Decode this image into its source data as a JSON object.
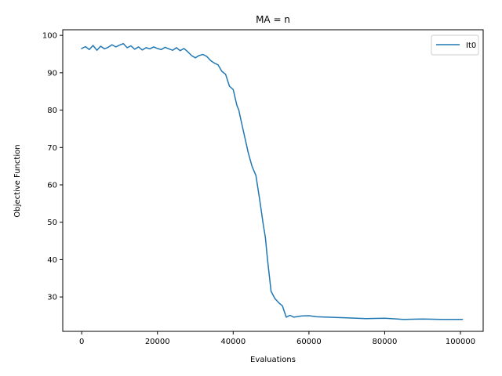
{
  "chart_data": {
    "type": "line",
    "title": "MA = n",
    "xlabel": "Evaluations",
    "ylabel": "Objective Function",
    "xlim": [
      -5000,
      106000
    ],
    "ylim": [
      20.8,
      101.5
    ],
    "xticks": [
      0,
      20000,
      40000,
      60000,
      80000,
      100000
    ],
    "yticks": [
      30,
      40,
      50,
      60,
      70,
      80,
      90,
      100
    ],
    "grid": false,
    "legend_position": "upper right",
    "series": [
      {
        "name": "It0",
        "color": "#1f77b4",
        "x": [
          0,
          1000,
          2000,
          3000,
          4000,
          5000,
          6000,
          7000,
          8000,
          9000,
          10000,
          11000,
          12000,
          13000,
          14000,
          15000,
          16000,
          17000,
          18000,
          19000,
          20000,
          21000,
          22000,
          23000,
          24000,
          25000,
          26000,
          27000,
          28000,
          29000,
          30000,
          31000,
          32000,
          33000,
          34000,
          35000,
          36000,
          37000,
          38000,
          39000,
          40000,
          41000,
          41500,
          42000,
          43000,
          44000,
          45000,
          46000,
          47000,
          47500,
          48000,
          48500,
          49000,
          49500,
          50000,
          51000,
          52000,
          53000,
          54000,
          55000,
          56000,
          58000,
          60000,
          62000,
          65000,
          70000,
          75000,
          80000,
          85000,
          90000,
          95000,
          100000,
          100500
        ],
        "values": [
          96.5,
          97.0,
          96.2,
          97.3,
          96.0,
          97.1,
          96.4,
          96.8,
          97.5,
          96.9,
          97.4,
          97.8,
          96.7,
          97.2,
          96.3,
          96.9,
          96.1,
          96.7,
          96.4,
          96.9,
          96.5,
          96.2,
          96.8,
          96.4,
          96.0,
          96.7,
          95.9,
          96.5,
          95.6,
          94.6,
          94.0,
          94.6,
          94.9,
          94.4,
          93.3,
          92.6,
          92.1,
          90.4,
          89.6,
          86.4,
          85.5,
          81.2,
          80.0,
          77.5,
          73.0,
          68.5,
          64.9,
          62.5,
          56.0,
          52.5,
          49.0,
          46.0,
          40.5,
          36.0,
          31.5,
          29.6,
          28.5,
          27.6,
          24.6,
          25.1,
          24.6,
          24.9,
          25.0,
          24.7,
          24.6,
          24.4,
          24.2,
          24.3,
          24.0,
          24.1,
          24.0,
          24.0,
          24.0
        ]
      }
    ]
  }
}
